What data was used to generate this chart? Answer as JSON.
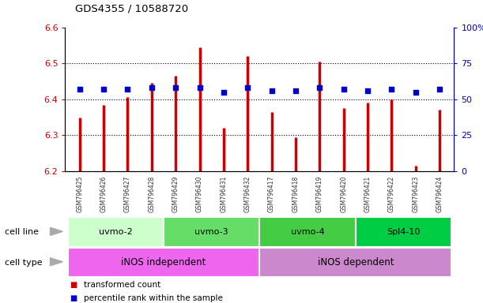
{
  "title": "GDS4355 / 10588720",
  "samples": [
    "GSM796425",
    "GSM796426",
    "GSM796427",
    "GSM796428",
    "GSM796429",
    "GSM796430",
    "GSM796431",
    "GSM796432",
    "GSM796417",
    "GSM796418",
    "GSM796419",
    "GSM796420",
    "GSM796421",
    "GSM796422",
    "GSM796423",
    "GSM796424"
  ],
  "bar_values": [
    6.35,
    6.385,
    6.405,
    6.445,
    6.465,
    6.545,
    6.32,
    6.52,
    6.365,
    6.295,
    6.505,
    6.375,
    6.39,
    6.4,
    6.215,
    6.37
  ],
  "dot_values": [
    57,
    57,
    57,
    58,
    58,
    58,
    55,
    58,
    56,
    56,
    58,
    57,
    56,
    57,
    55,
    57
  ],
  "ylim_left": [
    6.2,
    6.6
  ],
  "ylim_right": [
    0,
    100
  ],
  "yticks_left": [
    6.2,
    6.3,
    6.4,
    6.5,
    6.6
  ],
  "yticks_right": [
    0,
    25,
    50,
    75,
    100
  ],
  "bar_color": "#cc0000",
  "dot_color": "#0000cc",
  "bar_bottom": 6.2,
  "cell_line_groups": [
    {
      "label": "uvmo-2",
      "start": 0,
      "end": 3,
      "color": "#ccffcc"
    },
    {
      "label": "uvmo-3",
      "start": 4,
      "end": 7,
      "color": "#66dd66"
    },
    {
      "label": "uvmo-4",
      "start": 8,
      "end": 11,
      "color": "#44cc44"
    },
    {
      "label": "Spl4-10",
      "start": 12,
      "end": 15,
      "color": "#00cc44"
    }
  ],
  "cell_type_groups": [
    {
      "label": "iNOS independent",
      "start": 0,
      "end": 7,
      "color": "#ee66ee"
    },
    {
      "label": "iNOS dependent",
      "start": 8,
      "end": 15,
      "color": "#cc88cc"
    }
  ],
  "legend_items": [
    {
      "label": "transformed count",
      "color": "#cc0000"
    },
    {
      "label": "percentile rank within the sample",
      "color": "#0000cc"
    }
  ],
  "bg_color": "#ffffff",
  "tick_color_left": "#cc0000",
  "tick_color_right": "#0000cc",
  "xtick_bg": "#cccccc",
  "row_label_color": "#888888"
}
